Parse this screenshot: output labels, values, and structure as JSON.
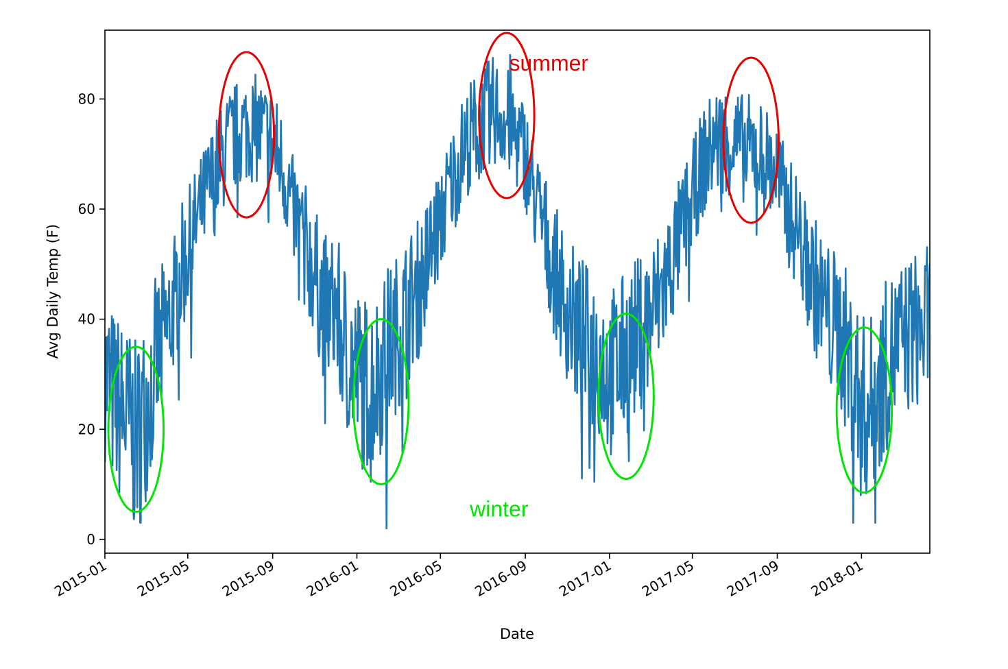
{
  "chart_data": {
    "type": "line",
    "xlabel": "Date",
    "ylabel": "Avg Daily Temp (F)",
    "xlim": [
      "2015-01-01",
      "2018-04-10"
    ],
    "ylim": [
      -2.5,
      92.5
    ],
    "xticks": [
      "2015-01",
      "2015-05",
      "2015-09",
      "2016-01",
      "2016-05",
      "2016-09",
      "2017-01",
      "2017-05",
      "2017-09",
      "2018-01"
    ],
    "yticks": [
      0,
      20,
      40,
      60,
      80
    ],
    "grid": false,
    "legend": "none",
    "series_color": "#1f77b4",
    "annotation_colors": {
      "summer": "#e60000",
      "winter": "#00e600"
    },
    "annotations": [
      {
        "text": "summer",
        "x": "2016-10-05",
        "y": 86.5,
        "color": "#e60000"
      },
      {
        "text": "winter",
        "x": "2016-07-25",
        "y": 5.5,
        "color": "#00e600"
      }
    ],
    "highlight_regions": [
      {
        "label": "winter",
        "center": [
          "2015-02-15",
          20
        ],
        "rx_days": 40,
        "ry": 15,
        "color": "#00e600"
      },
      {
        "label": "summer",
        "center": [
          "2015-07-25",
          73.5
        ],
        "rx_days": 40,
        "ry": 15,
        "color": "#e60000"
      },
      {
        "label": "winter",
        "center": [
          "2016-02-05",
          25
        ],
        "rx_days": 40,
        "ry": 15,
        "color": "#00e600"
      },
      {
        "label": "summer",
        "center": [
          "2016-08-05",
          77
        ],
        "rx_days": 40,
        "ry": 15,
        "color": "#e60000"
      },
      {
        "label": "winter",
        "center": [
          "2017-01-25",
          26
        ],
        "rx_days": 40,
        "ry": 15,
        "color": "#00e600"
      },
      {
        "label": "summer",
        "center": [
          "2017-07-25",
          72.5
        ],
        "rx_days": 40,
        "ry": 15,
        "color": "#e60000"
      },
      {
        "label": "winter",
        "center": [
          "2018-01-05",
          23.5
        ],
        "rx_days": 40,
        "ry": 15,
        "color": "#00e600"
      }
    ],
    "series": [
      {
        "x": [
          "2015-01-01",
          "2015-01-15",
          "2015-02-01",
          "2015-02-15",
          "2015-03-01",
          "2015-03-15",
          "2015-04-01",
          "2015-04-15",
          "2015-05-01",
          "2015-05-15",
          "2015-06-01",
          "2015-06-15",
          "2015-07-01",
          "2015-07-15",
          "2015-08-01",
          "2015-08-15",
          "2015-09-01",
          "2015-09-15",
          "2015-10-01",
          "2015-10-15",
          "2015-11-01",
          "2015-11-15",
          "2015-12-01",
          "2015-12-15",
          "2016-01-01",
          "2016-01-15",
          "2016-02-01",
          "2016-02-15",
          "2016-03-01",
          "2016-03-15",
          "2016-04-01",
          "2016-04-15",
          "2016-05-01",
          "2016-05-15",
          "2016-06-01",
          "2016-06-15",
          "2016-07-01",
          "2016-07-15",
          "2016-08-01",
          "2016-08-15",
          "2016-09-01",
          "2016-09-15",
          "2016-10-01",
          "2016-10-15",
          "2016-11-01",
          "2016-11-15",
          "2016-12-01",
          "2016-12-15",
          "2017-01-01",
          "2017-01-15",
          "2017-02-01",
          "2017-02-15",
          "2017-03-01",
          "2017-03-15",
          "2017-04-01",
          "2017-04-15",
          "2017-05-01",
          "2017-05-15",
          "2017-06-01",
          "2017-06-15",
          "2017-07-01",
          "2017-07-15",
          "2017-08-01",
          "2017-08-15",
          "2017-09-01",
          "2017-09-15",
          "2017-10-01",
          "2017-10-15",
          "2017-11-01",
          "2017-11-15",
          "2017-12-01",
          "2017-12-15",
          "2018-01-01",
          "2018-01-15",
          "2018-02-01",
          "2018-02-15",
          "2018-03-01",
          "2018-03-15",
          "2018-04-01",
          "2018-04-10"
        ],
        "values": [
          30,
          25,
          22,
          18,
          24,
          32,
          38,
          46,
          52,
          58,
          64,
          68,
          72,
          74,
          75,
          74,
          72,
          68,
          60,
          55,
          48,
          42,
          42,
          36,
          30,
          28,
          30,
          35,
          38,
          42,
          46,
          52,
          58,
          64,
          70,
          74,
          76,
          78,
          77,
          74,
          70,
          62,
          55,
          48,
          42,
          38,
          35,
          34,
          30,
          32,
          35,
          38,
          40,
          44,
          50,
          56,
          62,
          68,
          72,
          73,
          72,
          71,
          71,
          69,
          66,
          60,
          56,
          50,
          44,
          40,
          38,
          32,
          24,
          24,
          30,
          34,
          36,
          38,
          38,
          40
        ],
        "min": 2,
        "max": 88
      }
    ]
  }
}
